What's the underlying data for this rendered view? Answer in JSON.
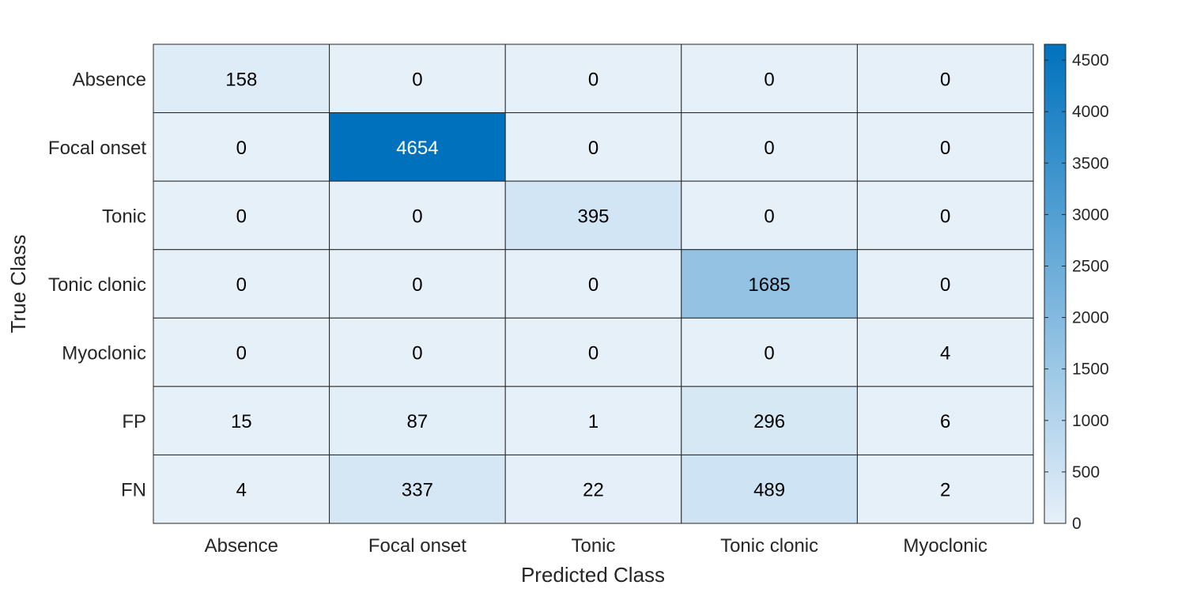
{
  "chart_data": {
    "type": "heatmap",
    "title": "",
    "xlabel": "Predicted Class",
    "ylabel": "True Class",
    "x_categories": [
      "Absence",
      "Focal onset",
      "Tonic",
      "Tonic clonic",
      "Myoclonic"
    ],
    "y_categories": [
      "Absence",
      "Focal onset",
      "Tonic",
      "Tonic clonic",
      "Myoclonic",
      "FP",
      "FN"
    ],
    "values": [
      [
        158,
        0,
        0,
        0,
        0
      ],
      [
        0,
        4654,
        0,
        0,
        0
      ],
      [
        0,
        0,
        395,
        0,
        0
      ],
      [
        0,
        0,
        0,
        1685,
        0
      ],
      [
        0,
        0,
        0,
        0,
        4
      ],
      [
        15,
        87,
        1,
        296,
        6
      ],
      [
        4,
        337,
        22,
        489,
        2
      ]
    ],
    "colorbar": {
      "min": 0,
      "max": 4654,
      "ticks": [
        0,
        500,
        1000,
        1500,
        2000,
        2500,
        3000,
        3500,
        4000,
        4500
      ],
      "low_color": "#e6f0f9",
      "high_color": "#0072bd"
    },
    "grid_color": "#262626"
  }
}
